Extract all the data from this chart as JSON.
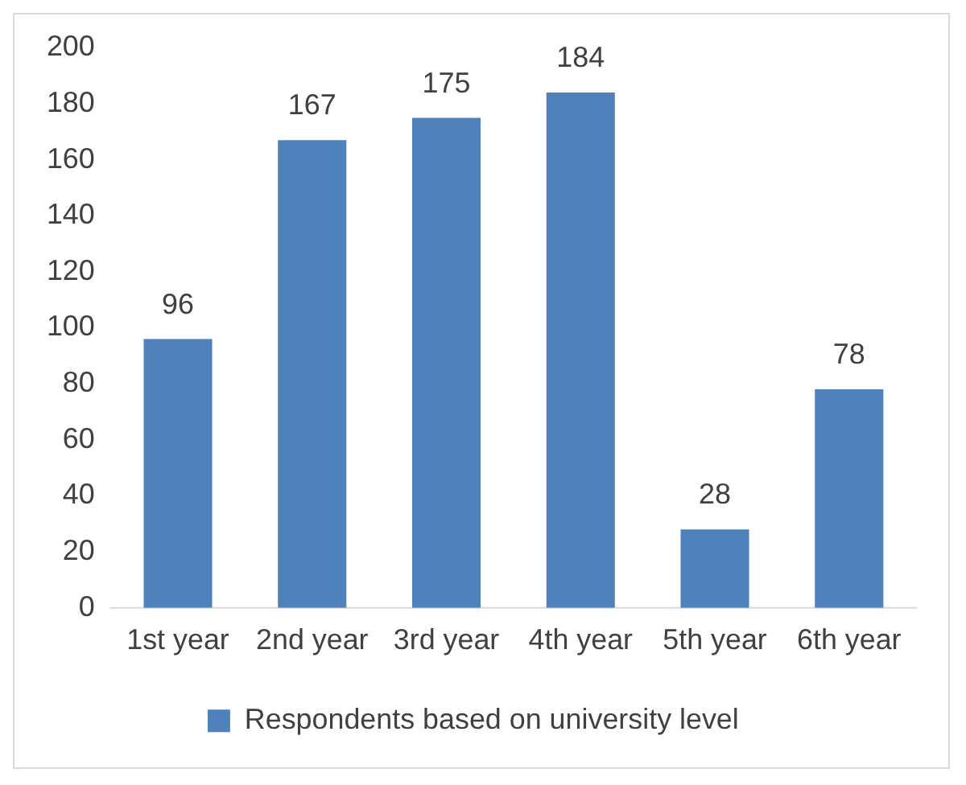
{
  "chart_data": {
    "type": "bar",
    "categories": [
      "1st year",
      "2nd year",
      "3rd year",
      "4th year",
      "5th year",
      "6th year"
    ],
    "series": [
      {
        "name": "Respondents based on university level",
        "color": "#4f81bd",
        "values": [
          96,
          167,
          175,
          184,
          28,
          78
        ]
      }
    ],
    "ylim": [
      0,
      200
    ],
    "yticks": [
      0,
      20,
      40,
      60,
      80,
      100,
      120,
      140,
      160,
      180,
      200
    ],
    "grid": false,
    "legend": "bottom",
    "data_labels": true
  }
}
